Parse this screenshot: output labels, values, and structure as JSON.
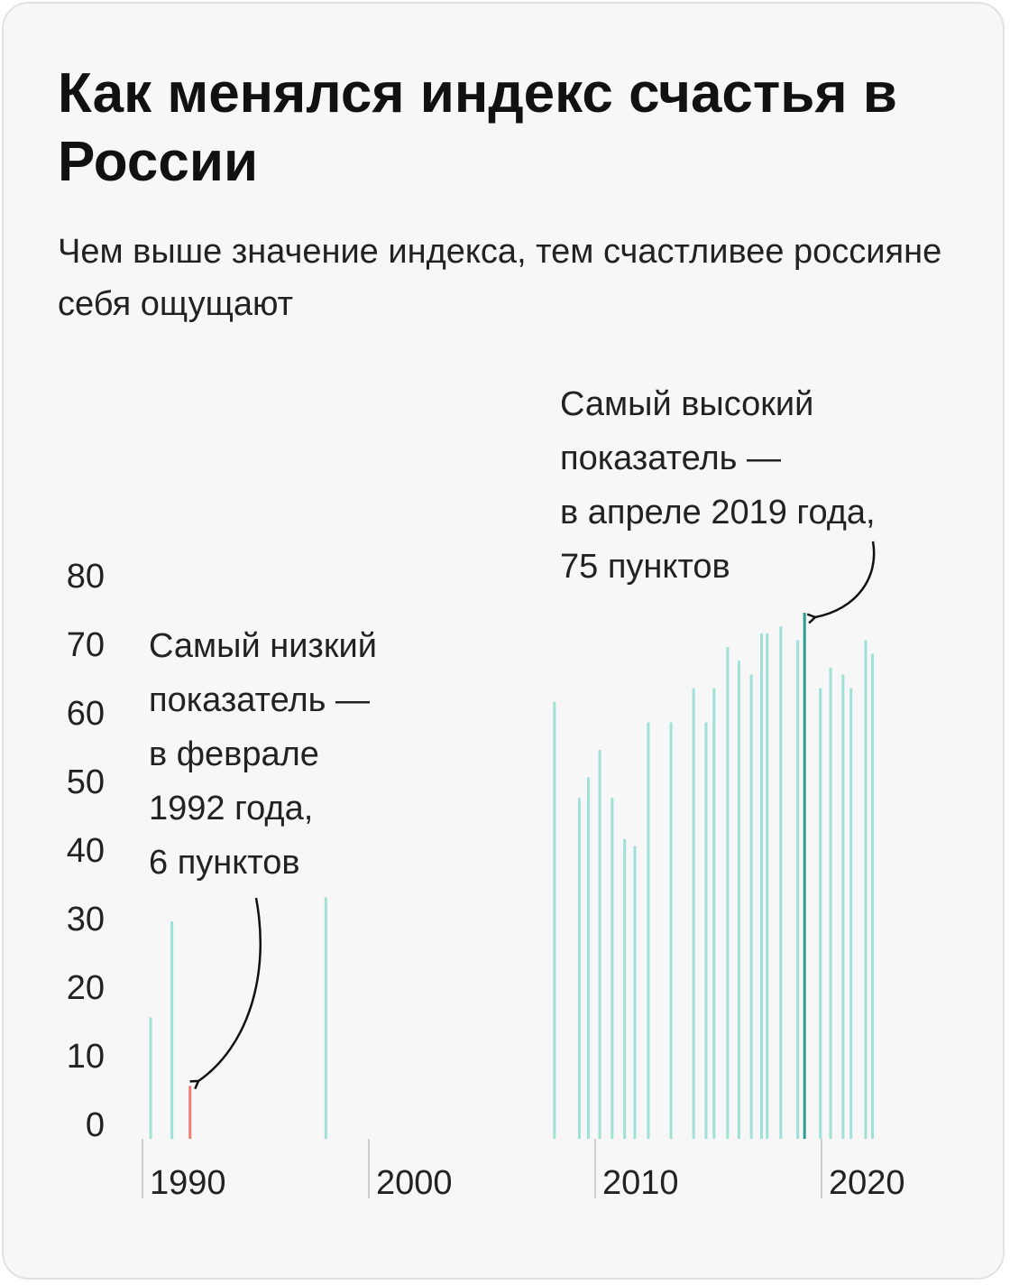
{
  "chart_data": {
    "type": "bar",
    "title": "Как менялся индекс счастья в России",
    "subtitle": "Чем выше значение индекса, тем счастливее россияне себя ощущают",
    "x": [
      1990.36,
      1991.3,
      1992.1,
      1998.1,
      2008.2,
      2009.3,
      2009.7,
      2010.2,
      2010.75,
      2011.3,
      2011.75,
      2012.35,
      2013.35,
      2014.35,
      2014.9,
      2015.25,
      2015.85,
      2016.35,
      2016.9,
      2017.35,
      2017.6,
      2018.2,
      2018.95,
      2019.25,
      2019.95,
      2020.4,
      2020.95,
      2021.3,
      2021.95,
      2022.25
    ],
    "values": [
      16,
      30,
      6,
      33.5,
      62,
      48,
      51,
      55,
      48,
      42,
      41,
      59,
      59,
      64,
      59,
      64,
      70,
      68,
      66,
      72,
      72,
      73,
      71,
      75,
      64,
      67,
      66,
      64,
      71,
      69
    ],
    "colors": [
      "#9fe0d9",
      "#9fe0d9",
      "#f07b73",
      "#9fe0d9",
      "#9fe0d9",
      "#9fe0d9",
      "#9fe0d9",
      "#9fe0d9",
      "#9fe0d9",
      "#9fe0d9",
      "#9fe0d9",
      "#9fe0d9",
      "#9fe0d9",
      "#9fe0d9",
      "#9fe0d9",
      "#9fe0d9",
      "#9fe0d9",
      "#9fe0d9",
      "#9fe0d9",
      "#9fe0d9",
      "#9fe0d9",
      "#9fe0d9",
      "#9fe0d9",
      "#2a9d8f",
      "#9fe0d9",
      "#9fe0d9",
      "#9fe0d9",
      "#9fe0d9",
      "#9fe0d9",
      "#9fe0d9"
    ],
    "xlim": [
      1989.6,
      2022.67
    ],
    "xticks": [
      1990,
      2000,
      2010,
      2020
    ],
    "ylim": [
      0,
      80
    ],
    "yticks": [
      0,
      10,
      20,
      30,
      40,
      50,
      60,
      70,
      80
    ],
    "annotations": [
      {
        "lines": [
          "Самый высокий",
          "показатель —",
          "в апреле 2019 года,",
          "75 пунктов"
        ]
      },
      {
        "lines": [
          "Самый низкий",
          "показатель —",
          "в феврале",
          "1992 года,",
          "6 пунктов"
        ]
      }
    ]
  }
}
